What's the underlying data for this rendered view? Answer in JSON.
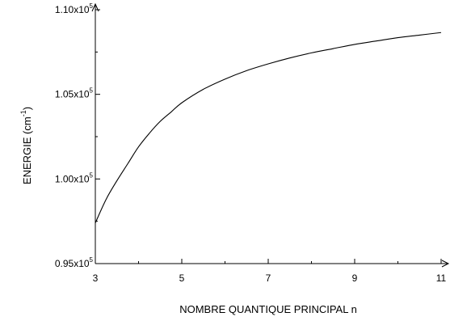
{
  "chart_data": {
    "type": "line",
    "title": "",
    "xlabel": "NOMBRE QUANTIQUE PRINCIPAL n",
    "ylabel": {
      "base": "ENERGIE (cm",
      "sup": "-1",
      "close": ")"
    },
    "xlim": [
      3,
      11
    ],
    "ylim": [
      95000,
      110000
    ],
    "x_ticks": [
      {
        "value": 3,
        "label": "3"
      },
      {
        "value": 5,
        "label": "5"
      },
      {
        "value": 7,
        "label": "7"
      },
      {
        "value": 9,
        "label": "9"
      },
      {
        "value": 11,
        "label": "11"
      }
    ],
    "y_ticks": [
      {
        "value": 95000,
        "mantissa": "0.95x10",
        "exp": "5"
      },
      {
        "value": 100000,
        "mantissa": "1.00x10",
        "exp": "5"
      },
      {
        "value": 105000,
        "mantissa": "1.05x10",
        "exp": "5"
      },
      {
        "value": 110000,
        "mantissa": "1.10x10",
        "exp": "5"
      }
    ],
    "grid": false,
    "legend": "none",
    "series": [
      {
        "color": "#000000",
        "points": [
          [
            3.0,
            97400
          ],
          [
            3.25,
            98800
          ],
          [
            3.5,
            99900
          ],
          [
            3.75,
            100900
          ],
          [
            4.0,
            101900
          ],
          [
            4.25,
            102700
          ],
          [
            4.5,
            103400
          ],
          [
            4.75,
            103950
          ],
          [
            5.0,
            104500
          ],
          [
            5.5,
            105300
          ],
          [
            6.0,
            105900
          ],
          [
            6.5,
            106400
          ],
          [
            7.0,
            106800
          ],
          [
            7.5,
            107150
          ],
          [
            8.0,
            107450
          ],
          [
            8.5,
            107700
          ],
          [
            9.0,
            107950
          ],
          [
            9.5,
            108150
          ],
          [
            10.0,
            108350
          ],
          [
            10.5,
            108500
          ],
          [
            11.0,
            108650
          ]
        ]
      }
    ]
  }
}
